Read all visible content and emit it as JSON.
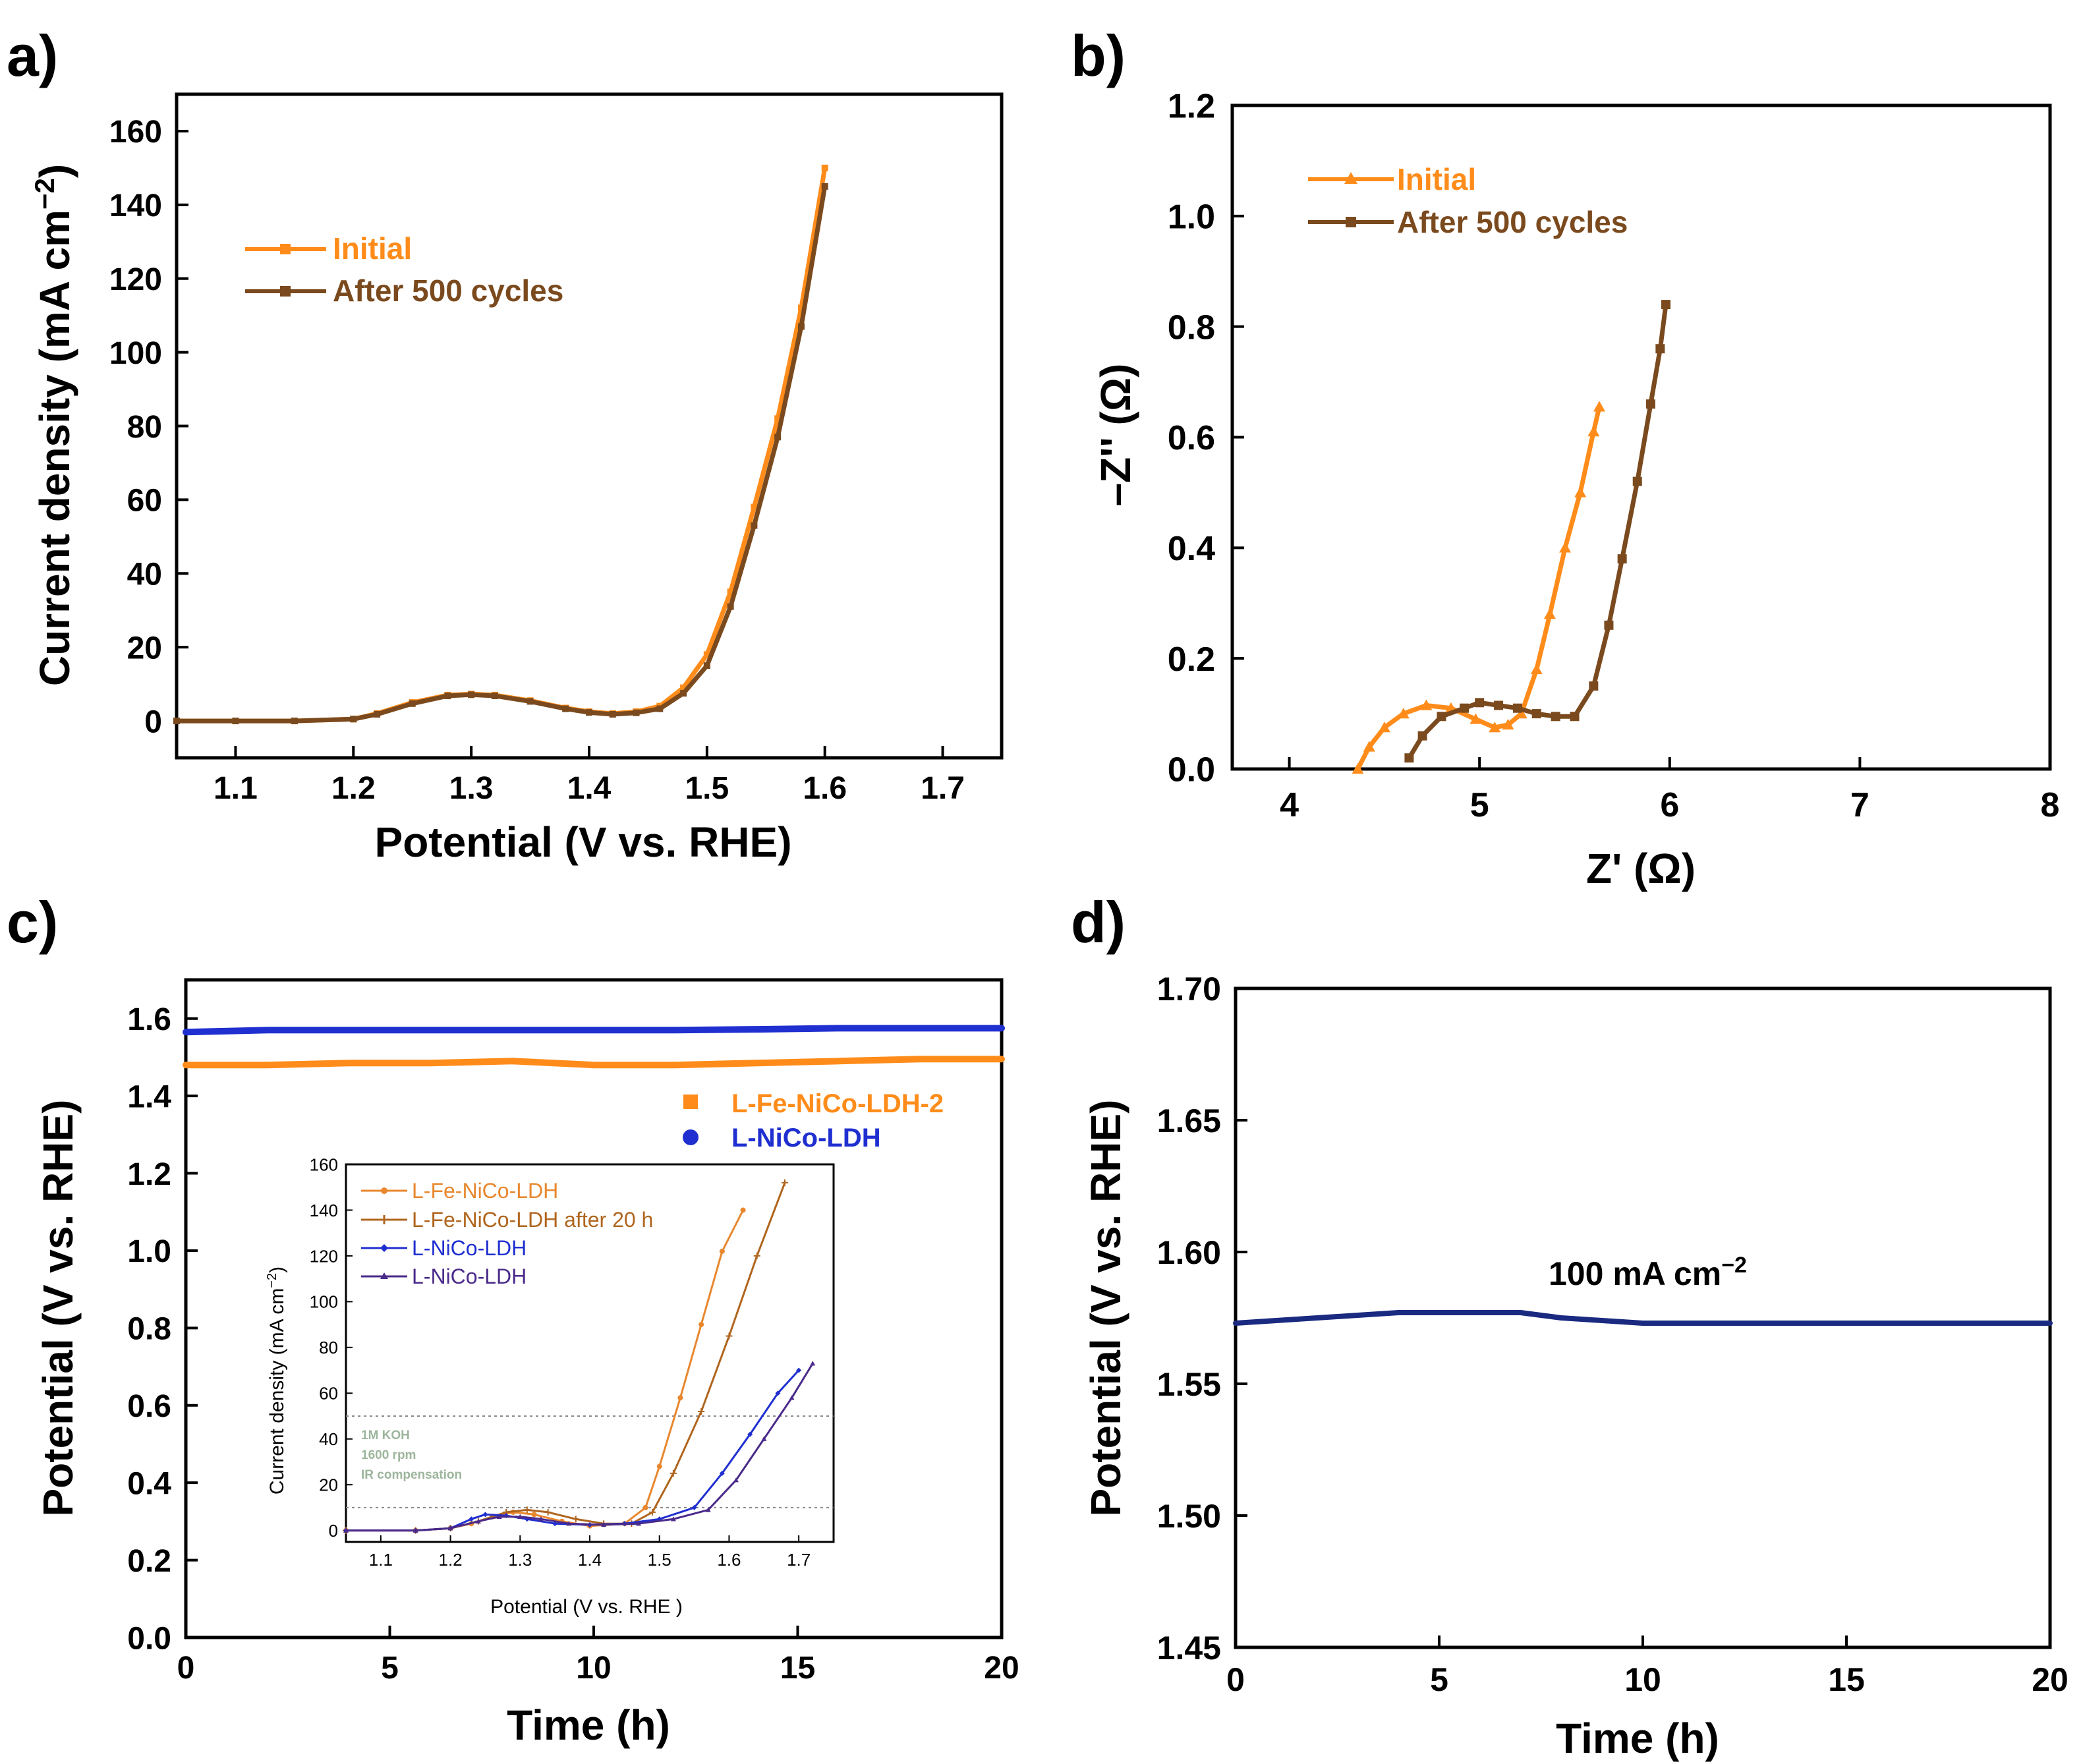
{
  "colors": {
    "orange": "#FF8C1A",
    "brown": "#7A4A1E",
    "blue": "#1F2FD0",
    "navy": "#1A2A80",
    "purple": "#4A2A8A",
    "inset_orange": "#E8872E",
    "inset_brown": "#B0651E",
    "inset_note": "#9CB59C"
  },
  "chart_data": [
    {
      "panel": "a)",
      "type": "line",
      "xlabel": "Potential (V vs. RHE)",
      "ylabel_main": "Current density (mA cm",
      "ylabel_sup": "−2",
      "ylabel_end": ")",
      "xlim": [
        1.05,
        1.75
      ],
      "ylim": [
        -10,
        170
      ],
      "xticks": [
        1.1,
        1.2,
        1.3,
        1.4,
        1.5,
        1.6,
        1.7
      ],
      "xtick_labels": [
        "1.1",
        "1.2",
        "1.3",
        "1.4",
        "1.5",
        "1.6",
        "1.7"
      ],
      "yticks": [
        0,
        20,
        40,
        60,
        80,
        100,
        120,
        140,
        160
      ],
      "ytick_labels": [
        "0",
        "20",
        "40",
        "60",
        "80",
        "100",
        "120",
        "140",
        "160"
      ],
      "series": [
        {
          "name": "Initial",
          "color": "orange",
          "x": [
            1.05,
            1.1,
            1.15,
            1.2,
            1.22,
            1.25,
            1.28,
            1.3,
            1.32,
            1.35,
            1.38,
            1.4,
            1.42,
            1.44,
            1.46,
            1.48,
            1.5,
            1.52,
            1.54,
            1.56,
            1.58,
            1.6
          ],
          "y": [
            0,
            0,
            0,
            0.5,
            2,
            5,
            7,
            7.3,
            7,
            5.5,
            3.5,
            2.5,
            2,
            2.5,
            4,
            9,
            18,
            35,
            58,
            82,
            112,
            150
          ]
        },
        {
          "name": "After 500 cycles",
          "color": "brown",
          "x": [
            1.05,
            1.1,
            1.15,
            1.2,
            1.22,
            1.25,
            1.28,
            1.3,
            1.32,
            1.35,
            1.38,
            1.4,
            1.42,
            1.44,
            1.46,
            1.48,
            1.5,
            1.52,
            1.54,
            1.56,
            1.58,
            1.6
          ],
          "y": [
            0,
            0,
            0,
            0.5,
            1.8,
            4.7,
            6.8,
            7.1,
            6.8,
            5.3,
            3.3,
            2.3,
            1.8,
            2.2,
            3.3,
            7.5,
            15,
            31,
            53,
            77,
            107,
            145
          ]
        }
      ]
    },
    {
      "panel": "b)",
      "type": "line",
      "xlabel": "Z' (Ω)",
      "ylabel": "–Z'' (Ω)",
      "xlim": [
        3.7,
        8
      ],
      "ylim": [
        0,
        1.2
      ],
      "xticks": [
        4,
        5,
        6,
        7,
        8
      ],
      "xtick_labels": [
        "4",
        "5",
        "6",
        "7",
        "8"
      ],
      "yticks": [
        0,
        0.2,
        0.4,
        0.6,
        0.8,
        1.0,
        1.2
      ],
      "ytick_labels": [
        "0.0",
        "0.2",
        "0.4",
        "0.6",
        "0.8",
        "1.0",
        "1.2"
      ],
      "series": [
        {
          "name": "Initial",
          "color": "orange",
          "x": [
            4.36,
            4.42,
            4.5,
            4.6,
            4.72,
            4.85,
            4.98,
            5.08,
            5.15,
            5.22,
            5.3,
            5.37,
            5.45,
            5.53,
            5.6,
            5.63
          ],
          "y": [
            0.0,
            0.04,
            0.075,
            0.1,
            0.115,
            0.11,
            0.09,
            0.075,
            0.08,
            0.1,
            0.18,
            0.28,
            0.4,
            0.5,
            0.61,
            0.655
          ]
        },
        {
          "name": "After 500 cycles",
          "color": "brown",
          "x": [
            4.63,
            4.7,
            4.8,
            4.92,
            5.0,
            5.1,
            5.2,
            5.3,
            5.4,
            5.5,
            5.6,
            5.68,
            5.75,
            5.83,
            5.9,
            5.95,
            5.98
          ],
          "y": [
            0.02,
            0.06,
            0.095,
            0.11,
            0.12,
            0.115,
            0.11,
            0.1,
            0.095,
            0.095,
            0.15,
            0.26,
            0.38,
            0.52,
            0.66,
            0.76,
            0.84
          ]
        }
      ]
    },
    {
      "panel": "c)",
      "type": "line",
      "xlabel": "Time (h)",
      "ylabel": "Potential (V vs. RHE)",
      "xlim": [
        0,
        20
      ],
      "ylim": [
        0,
        1.7
      ],
      "xticks": [
        0,
        5,
        10,
        15,
        20
      ],
      "xtick_labels": [
        "0",
        "5",
        "10",
        "15",
        "20"
      ],
      "yticks": [
        0,
        0.2,
        0.4,
        0.6,
        0.8,
        1.0,
        1.2,
        1.4,
        1.6
      ],
      "ytick_labels": [
        "0.0",
        "0.2",
        "0.4",
        "0.6",
        "0.8",
        "1.0",
        "1.2",
        "1.4",
        "1.6"
      ],
      "series": [
        {
          "name": "L-Fe-NiCo-LDH-2",
          "color": "orange",
          "x": [
            0,
            2,
            4,
            6,
            8,
            10,
            12,
            14,
            16,
            18,
            20
          ],
          "y": [
            1.48,
            1.48,
            1.485,
            1.485,
            1.49,
            1.48,
            1.48,
            1.485,
            1.49,
            1.495,
            1.495
          ]
        },
        {
          "name": "L-NiCo-LDH",
          "color": "blue",
          "x": [
            0,
            2,
            4,
            6,
            8,
            10,
            12,
            14,
            16,
            18,
            20
          ],
          "y": [
            1.565,
            1.57,
            1.57,
            1.57,
            1.57,
            1.57,
            1.57,
            1.572,
            1.575,
            1.575,
            1.575
          ]
        }
      ],
      "inset": {
        "xlabel": "Potential (V vs. RHE )",
        "ylabel_main": "Current density (mA cm",
        "ylabel_sup": "−2",
        "ylabel_end": ")",
        "xlim": [
          1.05,
          1.75
        ],
        "ylim": [
          -5,
          160
        ],
        "xticks": [
          1.1,
          1.2,
          1.3,
          1.4,
          1.5,
          1.6,
          1.7
        ],
        "xtick_labels": [
          "1.1",
          "1.2",
          "1.3",
          "1.4",
          "1.5",
          "1.6",
          "1.7"
        ],
        "yticks": [
          0,
          20,
          40,
          60,
          80,
          100,
          120,
          140,
          160
        ],
        "ytick_labels": [
          "0",
          "20",
          "40",
          "60",
          "80",
          "100",
          "120",
          "140",
          "160"
        ],
        "reference_lines": [
          10,
          50
        ],
        "notes": [
          "1M KOH",
          "1600 rpm",
          "IR compensation"
        ],
        "series": [
          {
            "name": "L-Fe-NiCo-LDH",
            "color": "inset_orange",
            "x": [
              1.05,
              1.15,
              1.2,
              1.23,
              1.26,
              1.29,
              1.32,
              1.36,
              1.4,
              1.45,
              1.48,
              1.5,
              1.53,
              1.56,
              1.59,
              1.62
            ],
            "y": [
              0,
              0,
              1,
              3,
              6,
              8,
              7,
              4,
              2,
              3,
              10,
              28,
              58,
              90,
              122,
              140
            ]
          },
          {
            "name": "L-Fe-NiCo-LDH after 20 h",
            "color": "inset_brown",
            "x": [
              1.05,
              1.15,
              1.2,
              1.24,
              1.28,
              1.31,
              1.34,
              1.38,
              1.42,
              1.46,
              1.49,
              1.52,
              1.56,
              1.6,
              1.64,
              1.68
            ],
            "y": [
              0,
              0,
              1,
              4,
              8,
              9,
              8,
              5,
              3,
              3,
              8,
              25,
              52,
              85,
              120,
              152
            ]
          },
          {
            "name": "L-NiCo-LDH",
            "color": "blue",
            "x": [
              1.05,
              1.15,
              1.2,
              1.23,
              1.25,
              1.28,
              1.31,
              1.35,
              1.4,
              1.45,
              1.5,
              1.55,
              1.59,
              1.63,
              1.67,
              1.7
            ],
            "y": [
              0,
              0,
              1,
              5,
              7,
              6.5,
              5,
              3,
              2.5,
              3,
              5,
              10,
              25,
              42,
              60,
              70
            ]
          },
          {
            "name": "L-NiCo-LDH",
            "color": "purple",
            "x": [
              1.05,
              1.15,
              1.2,
              1.24,
              1.27,
              1.3,
              1.33,
              1.37,
              1.42,
              1.47,
              1.52,
              1.57,
              1.61,
              1.65,
              1.69,
              1.72
            ],
            "y": [
              0,
              0,
              1,
              4,
              6,
              6,
              5,
              3,
              2.5,
              3,
              5,
              9,
              22,
              40,
              58,
              73
            ]
          }
        ]
      }
    },
    {
      "panel": "d)",
      "type": "line",
      "xlabel": "Time (h)",
      "ylabel": "Potential (V vs. RHE)",
      "xlim": [
        0,
        20
      ],
      "ylim": [
        1.45,
        1.7
      ],
      "xticks": [
        0,
        5,
        10,
        15,
        20
      ],
      "xtick_labels": [
        "0",
        "5",
        "10",
        "15",
        "20"
      ],
      "yticks": [
        1.45,
        1.5,
        1.55,
        1.6,
        1.65,
        1.7
      ],
      "ytick_labels": [
        "1.45",
        "1.50",
        "1.55",
        "1.60",
        "1.65",
        "1.70"
      ],
      "annotation_main": "100 mA cm",
      "annotation_sup": "−2",
      "series": [
        {
          "name": "100 mA cm−2",
          "color": "navy",
          "x": [
            0,
            1,
            2,
            3,
            4,
            5,
            6,
            7,
            7.5,
            8,
            9,
            10,
            11,
            12,
            13,
            14,
            15,
            16,
            17,
            18,
            19,
            20
          ],
          "y": [
            1.573,
            1.574,
            1.575,
            1.576,
            1.577,
            1.577,
            1.577,
            1.577,
            1.576,
            1.575,
            1.574,
            1.573,
            1.573,
            1.573,
            1.573,
            1.573,
            1.573,
            1.573,
            1.573,
            1.573,
            1.573,
            1.573
          ]
        }
      ]
    }
  ]
}
